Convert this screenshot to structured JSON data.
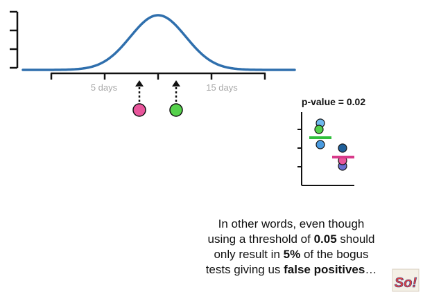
{
  "normal_curve": {
    "tick_labels": [
      "5 days",
      "15 days"
    ],
    "curve_color": "#2f6fad"
  },
  "samples": {
    "pink_color": "#e8559b",
    "green_color": "#55d14b"
  },
  "inset": {
    "title": "p-value = 0.02",
    "group1_colors": [
      "#6fb8ee",
      "#55d14b",
      "#4a9be0"
    ],
    "group1_mean_color": "#2fbf3b",
    "group2_colors": [
      "#1f5f99",
      "#e8559b",
      "#6a6fd0"
    ],
    "group2_mean_color": "#d83a8a"
  },
  "caption": {
    "line1": "In other words, even though",
    "line2_pre": "using a threshold of ",
    "line2_bold": "0.05",
    "line2_post": " should",
    "line3_pre": "only result in ",
    "line3_bold": "5%",
    "line3_post": " of the bogus",
    "line4_pre": "tests giving us ",
    "line4_bold": "false positives",
    "line4_post": "…"
  },
  "logo": {
    "text": "So!",
    "color": "#e8443a"
  }
}
